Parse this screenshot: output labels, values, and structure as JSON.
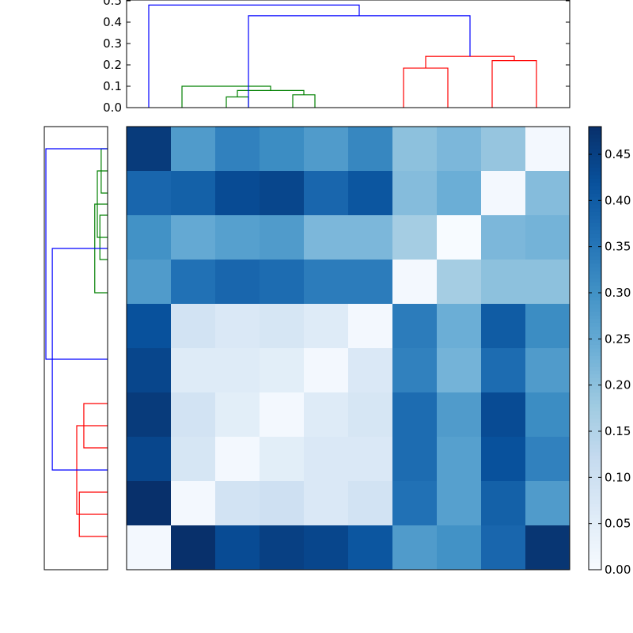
{
  "colors": {
    "cluster_a": "#0000ff",
    "cluster_b": "#ff0000",
    "cluster_c": "#008000",
    "colormap": "Blues"
  },
  "chart_data": {
    "type": "heatmap",
    "title": "",
    "note": "Clustered distance matrix (10x10) with hierarchical dendrograms on top and left, and a colorbar on the right.",
    "matrix": [
      [
        0.46,
        0.28,
        0.33,
        0.31,
        0.28,
        0.32,
        0.2,
        0.22,
        0.19,
        0.01
      ],
      [
        0.38,
        0.39,
        0.43,
        0.44,
        0.38,
        0.41,
        0.21,
        0.24,
        0.01,
        0.21
      ],
      [
        0.3,
        0.25,
        0.27,
        0.28,
        0.22,
        0.22,
        0.17,
        0.0,
        0.22,
        0.23
      ],
      [
        0.28,
        0.36,
        0.38,
        0.37,
        0.34,
        0.34,
        0.01,
        0.17,
        0.2,
        0.2
      ],
      [
        0.42,
        0.09,
        0.07,
        0.08,
        0.06,
        0.01,
        0.34,
        0.24,
        0.4,
        0.31
      ],
      [
        0.44,
        0.06,
        0.06,
        0.05,
        0.01,
        0.07,
        0.33,
        0.23,
        0.37,
        0.28
      ],
      [
        0.46,
        0.09,
        0.05,
        0.01,
        0.06,
        0.08,
        0.37,
        0.28,
        0.43,
        0.31
      ],
      [
        0.44,
        0.08,
        0.01,
        0.05,
        0.07,
        0.07,
        0.37,
        0.27,
        0.42,
        0.33
      ],
      [
        0.48,
        0.01,
        0.09,
        0.1,
        0.07,
        0.09,
        0.36,
        0.27,
        0.39,
        0.28
      ],
      [
        0.01,
        0.48,
        0.43,
        0.45,
        0.44,
        0.41,
        0.28,
        0.3,
        0.38,
        0.47
      ]
    ],
    "colorbar": {
      "vmin": 0.0,
      "vmax": 0.48,
      "ticks": [
        "0.00",
        "0.05",
        "0.10",
        "0.15",
        "0.20",
        "0.25",
        "0.30",
        "0.35",
        "0.40",
        "0.45"
      ]
    },
    "top_dendrogram": {
      "ylim": [
        0.0,
        0.5
      ],
      "ticks": [
        "0.0",
        "0.1",
        "0.2",
        "0.3",
        "0.4",
        "0.5"
      ],
      "links": [
        {
          "left": 4.5,
          "right": 5.5,
          "height": 0.05,
          "color": "cluster_c"
        },
        {
          "left": 7.5,
          "right": 8.5,
          "height": 0.06,
          "color": "cluster_c"
        },
        {
          "left": 5.0,
          "right": 8.0,
          "height": 0.08,
          "color": "cluster_c"
        },
        {
          "left": 2.5,
          "right": 6.5,
          "height": 0.1,
          "color": "cluster_c"
        },
        {
          "left": 12.5,
          "right": 14.5,
          "height": 0.185,
          "color": "cluster_b"
        },
        {
          "left": 16.5,
          "right": 18.5,
          "height": 0.22,
          "color": "cluster_b"
        },
        {
          "left": 13.5,
          "right": 17.5,
          "height": 0.24,
          "color": "cluster_b"
        },
        {
          "left": 5.5,
          "right": 15.5,
          "height": 0.43,
          "color": "cluster_a"
        },
        {
          "left": 1.0,
          "right": 10.5,
          "height": 0.48,
          "color": "cluster_a"
        }
      ]
    },
    "left_dendrogram": {
      "links": [
        {
          "top": 1.0,
          "bottom": 3.0,
          "depth": 0.05,
          "color": "cluster_c"
        },
        {
          "top": 4.0,
          "bottom": 6.0,
          "depth": 0.06,
          "color": "cluster_c"
        },
        {
          "top": 2.0,
          "bottom": 5.0,
          "depth": 0.08,
          "color": "cluster_c"
        },
        {
          "top": 3.5,
          "bottom": 7.5,
          "depth": 0.1,
          "color": "cluster_c"
        },
        {
          "top": 12.5,
          "bottom": 14.5,
          "depth": 0.185,
          "color": "cluster_b"
        },
        {
          "top": 16.5,
          "bottom": 18.5,
          "depth": 0.22,
          "color": "cluster_b"
        },
        {
          "top": 13.5,
          "bottom": 17.5,
          "depth": 0.24,
          "color": "cluster_b"
        },
        {
          "top": 5.5,
          "bottom": 15.5,
          "depth": 0.43,
          "color": "cluster_a"
        },
        {
          "top": 1.0,
          "bottom": 10.5,
          "depth": 0.48,
          "color": "cluster_a"
        }
      ]
    }
  }
}
